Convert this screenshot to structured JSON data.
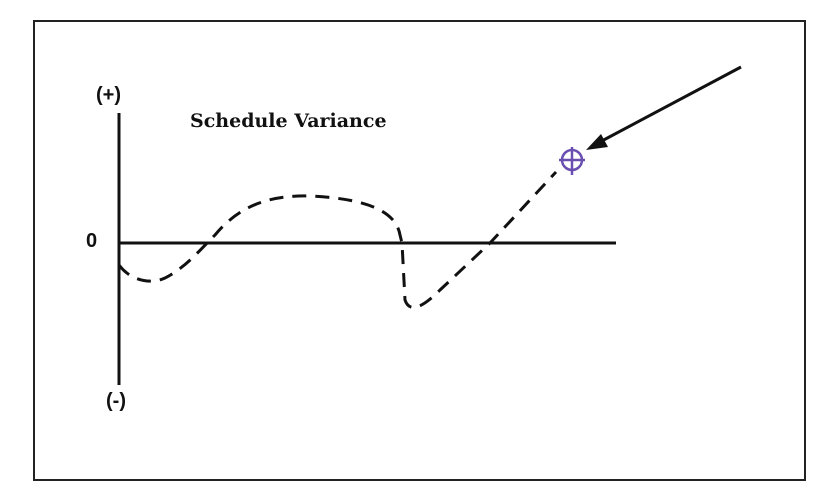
{
  "title": "Schedule Variance",
  "axis_labels": {
    "positive": "(+)",
    "zero": "0",
    "negative": "(-)"
  },
  "colors": {
    "line": "#111111",
    "marker": "#6a4fb0"
  },
  "icons": {
    "marker": "crosshair-icon",
    "pointer": "arrow-icon"
  }
}
